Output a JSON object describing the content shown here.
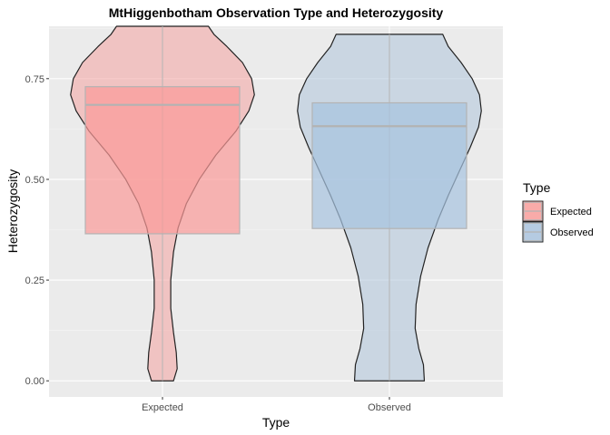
{
  "chart_data": {
    "type": "violin",
    "title": "MtHiggenbotham Observation Type and Heterozygosity",
    "xlabel": "Type",
    "ylabel": "Heterozygosity",
    "ylim": [
      -0.04,
      0.88
    ],
    "yticks": [
      0.0,
      0.25,
      0.5,
      0.75
    ],
    "ytick_labels": [
      "0.00",
      "0.25",
      "0.50",
      "0.75"
    ],
    "categories": [
      "Expected",
      "Observed"
    ],
    "grid": true,
    "legend": {
      "title": "Type",
      "position": "right",
      "entries": [
        "Expected",
        "Observed"
      ]
    },
    "series": [
      {
        "name": "Expected",
        "color": "#fb9a99",
        "violin_color": "#f4a8a6",
        "min": 0.0,
        "max": 0.88,
        "box": {
          "q1": 0.365,
          "median": 0.685,
          "q3": 0.73
        },
        "density": [
          [
            0.0,
            0.12
          ],
          [
            0.03,
            0.16
          ],
          [
            0.07,
            0.15
          ],
          [
            0.12,
            0.12
          ],
          [
            0.18,
            0.09
          ],
          [
            0.25,
            0.09
          ],
          [
            0.32,
            0.12
          ],
          [
            0.38,
            0.17
          ],
          [
            0.44,
            0.26
          ],
          [
            0.5,
            0.4
          ],
          [
            0.56,
            0.58
          ],
          [
            0.62,
            0.8
          ],
          [
            0.67,
            0.94
          ],
          [
            0.71,
            1.0
          ],
          [
            0.75,
            0.97
          ],
          [
            0.79,
            0.87
          ],
          [
            0.83,
            0.7
          ],
          [
            0.86,
            0.56
          ],
          [
            0.88,
            0.5
          ]
        ]
      },
      {
        "name": "Observed",
        "color": "#a6c3e0",
        "violin_color": "#b4c8dc",
        "min": 0.0,
        "max": 0.86,
        "box": {
          "q1": 0.378,
          "median": 0.632,
          "q3": 0.69
        },
        "density": [
          [
            0.0,
            0.38
          ],
          [
            0.04,
            0.37
          ],
          [
            0.08,
            0.32
          ],
          [
            0.13,
            0.28
          ],
          [
            0.19,
            0.29
          ],
          [
            0.26,
            0.34
          ],
          [
            0.33,
            0.42
          ],
          [
            0.4,
            0.53
          ],
          [
            0.46,
            0.64
          ],
          [
            0.52,
            0.76
          ],
          [
            0.58,
            0.88
          ],
          [
            0.63,
            0.97
          ],
          [
            0.67,
            1.0
          ],
          [
            0.71,
            0.98
          ],
          [
            0.75,
            0.9
          ],
          [
            0.79,
            0.78
          ],
          [
            0.83,
            0.64
          ],
          [
            0.86,
            0.58
          ]
        ]
      }
    ]
  }
}
